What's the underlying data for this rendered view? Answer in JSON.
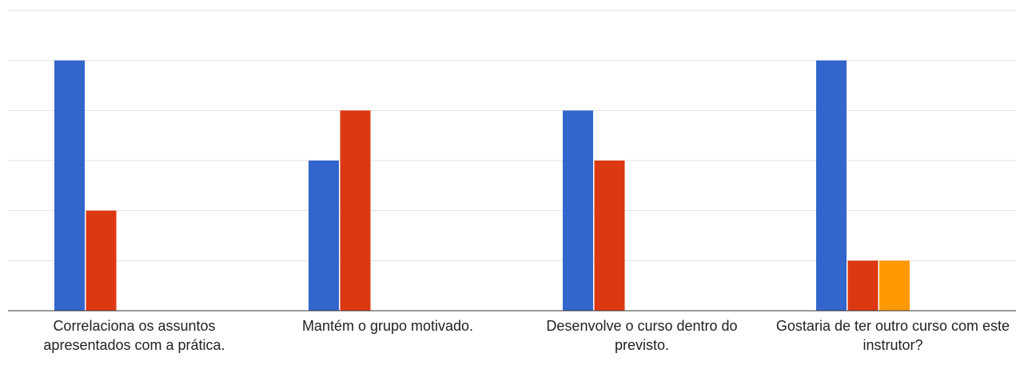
{
  "chart_data": {
    "type": "bar",
    "title": "",
    "xlabel": "",
    "ylabel": "",
    "ylim": [
      0,
      6
    ],
    "grid": true,
    "legend": "none",
    "categories": [
      "Correlaciona os assuntos apresentados com a prática.",
      "Mantém o grupo motivado.",
      "Desenvolve o curso dentro do previsto.",
      "Gostaria de ter outro curso com este instrutor?"
    ],
    "series": [
      {
        "color": "#3366cc",
        "values": [
          5,
          3,
          4,
          5
        ]
      },
      {
        "color": "#dc3912",
        "values": [
          2,
          4,
          3,
          1
        ]
      },
      {
        "color": "#ff9900",
        "values": [
          0,
          0,
          0,
          1
        ]
      }
    ]
  }
}
